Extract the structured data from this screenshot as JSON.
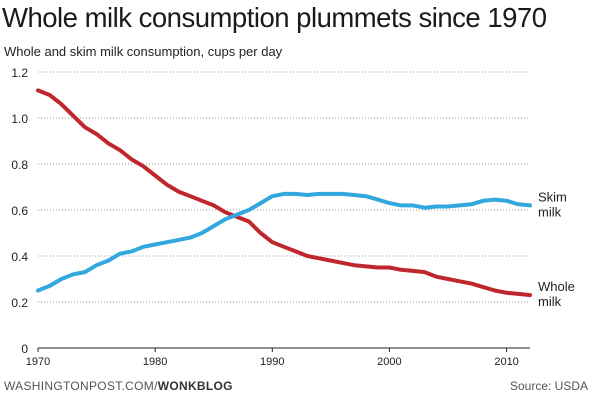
{
  "title": "Whole milk consumption plummets since 1970",
  "subtitle": "Whole and skim milk consumption, cups per day",
  "footer": {
    "credit_site": "WASHINGTONPOST.COM/",
    "credit_blog": "WONKBLOG",
    "source": "Source: USDA"
  },
  "colors": {
    "whole": "#c0272d",
    "skim": "#31a8de",
    "grid": "#9a9a9a",
    "axis": "#222222"
  },
  "chart_data": {
    "type": "line",
    "title": "Whole milk consumption plummets since 1970",
    "subtitle": "Whole and skim milk consumption, cups per day",
    "xlabel": "",
    "ylabel": "",
    "xlim": [
      1970,
      2012
    ],
    "ylim": [
      0,
      1.2
    ],
    "xticks": [
      1970,
      1980,
      1990,
      2000,
      2010
    ],
    "yticks": [
      0,
      0.2,
      0.4,
      0.6,
      0.8,
      1.0,
      1.2
    ],
    "ytick_labels": [
      "0",
      "0.2",
      "0.4",
      "0.6",
      "0.8",
      "1.0",
      "1.2"
    ],
    "grid": "horizontal dotted",
    "legend": "direct labels at right end of lines",
    "series": [
      {
        "name": "Whole milk",
        "label_lines": [
          "Whole",
          "milk"
        ],
        "color": "#c0272d",
        "x": [
          1970,
          1971,
          1972,
          1973,
          1974,
          1975,
          1976,
          1977,
          1978,
          1979,
          1980,
          1981,
          1982,
          1983,
          1984,
          1985,
          1986,
          1987,
          1988,
          1989,
          1990,
          1991,
          1992,
          1993,
          1994,
          1995,
          1996,
          1997,
          1998,
          1999,
          2000,
          2001,
          2002,
          2003,
          2004,
          2005,
          2006,
          2007,
          2008,
          2009,
          2010,
          2011,
          2012
        ],
        "y": [
          1.12,
          1.1,
          1.06,
          1.01,
          0.96,
          0.93,
          0.89,
          0.86,
          0.82,
          0.79,
          0.75,
          0.71,
          0.68,
          0.66,
          0.64,
          0.62,
          0.59,
          0.57,
          0.55,
          0.5,
          0.46,
          0.44,
          0.42,
          0.4,
          0.39,
          0.38,
          0.37,
          0.36,
          0.355,
          0.35,
          0.35,
          0.34,
          0.335,
          0.33,
          0.31,
          0.3,
          0.29,
          0.28,
          0.265,
          0.25,
          0.24,
          0.235,
          0.23
        ]
      },
      {
        "name": "Skim milk",
        "label_lines": [
          "Skim",
          "milk"
        ],
        "color": "#31a8de",
        "x": [
          1970,
          1971,
          1972,
          1973,
          1974,
          1975,
          1976,
          1977,
          1978,
          1979,
          1980,
          1981,
          1982,
          1983,
          1984,
          1985,
          1986,
          1987,
          1988,
          1989,
          1990,
          1991,
          1992,
          1993,
          1994,
          1995,
          1996,
          1997,
          1998,
          1999,
          2000,
          2001,
          2002,
          2003,
          2004,
          2005,
          2006,
          2007,
          2008,
          2009,
          2010,
          2011,
          2012
        ],
        "y": [
          0.25,
          0.27,
          0.3,
          0.32,
          0.33,
          0.36,
          0.38,
          0.41,
          0.42,
          0.44,
          0.45,
          0.46,
          0.47,
          0.48,
          0.5,
          0.53,
          0.56,
          0.58,
          0.6,
          0.63,
          0.66,
          0.67,
          0.67,
          0.665,
          0.67,
          0.67,
          0.67,
          0.665,
          0.66,
          0.645,
          0.63,
          0.62,
          0.62,
          0.61,
          0.615,
          0.615,
          0.62,
          0.625,
          0.64,
          0.645,
          0.64,
          0.625,
          0.62
        ]
      }
    ]
  }
}
